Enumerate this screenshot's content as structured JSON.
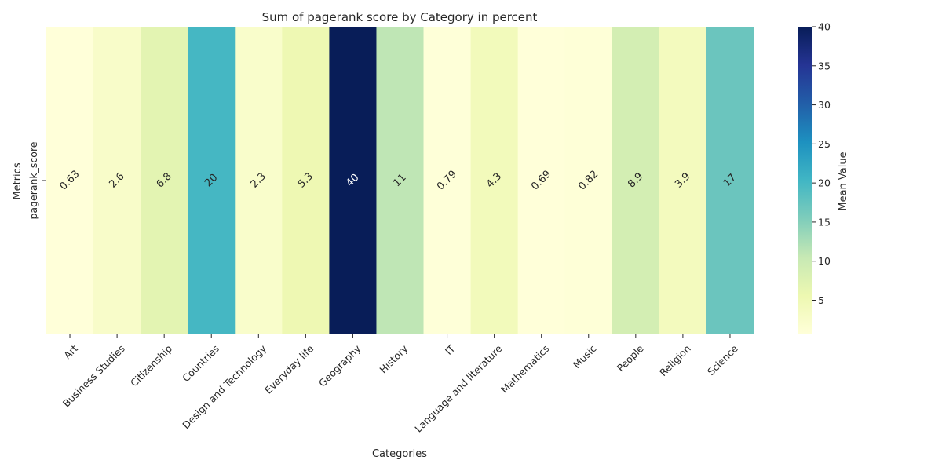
{
  "chart_data": {
    "type": "heatmap",
    "title": "Sum of pagerank score by Category in percent",
    "xlabel": "Categories",
    "ylabel": "Metrics",
    "rows": [
      "pagerank_score"
    ],
    "categories": [
      "Art",
      "Business Studies",
      "Citizenship",
      "Countries",
      "Design and Technology",
      "Everyday life",
      "Geography",
      "History",
      "IT",
      "Language and literature",
      "Mathematics",
      "Music",
      "People",
      "Religion",
      "Science"
    ],
    "values": [
      0.63,
      2.6,
      6.8,
      20,
      2.3,
      5.3,
      40,
      11,
      0.79,
      4.3,
      0.69,
      0.82,
      8.9,
      3.9,
      17
    ],
    "value_labels": [
      "0.63",
      "2.6",
      "6.8",
      "20",
      "2.3",
      "5.3",
      "40",
      "11",
      "0.79",
      "4.3",
      "0.69",
      "0.82",
      "8.9",
      "3.9",
      "17"
    ],
    "colormap": "YlGnBu",
    "vmin": 0.63,
    "vmax": 40,
    "colorbar": {
      "label": "Mean Value",
      "ticks": [
        5,
        10,
        15,
        20,
        25,
        30,
        35,
        40
      ]
    },
    "grid": false,
    "legend": "colorbar-right",
    "colormap_stops": [
      "#ffffd9",
      "#edf8b1",
      "#c7e9b4",
      "#7fcdbb",
      "#41b6c4",
      "#1d91c0",
      "#225ea8",
      "#253494",
      "#081d58"
    ],
    "text_colors": {
      "dark": "#262626",
      "light": "#ffffff"
    }
  }
}
